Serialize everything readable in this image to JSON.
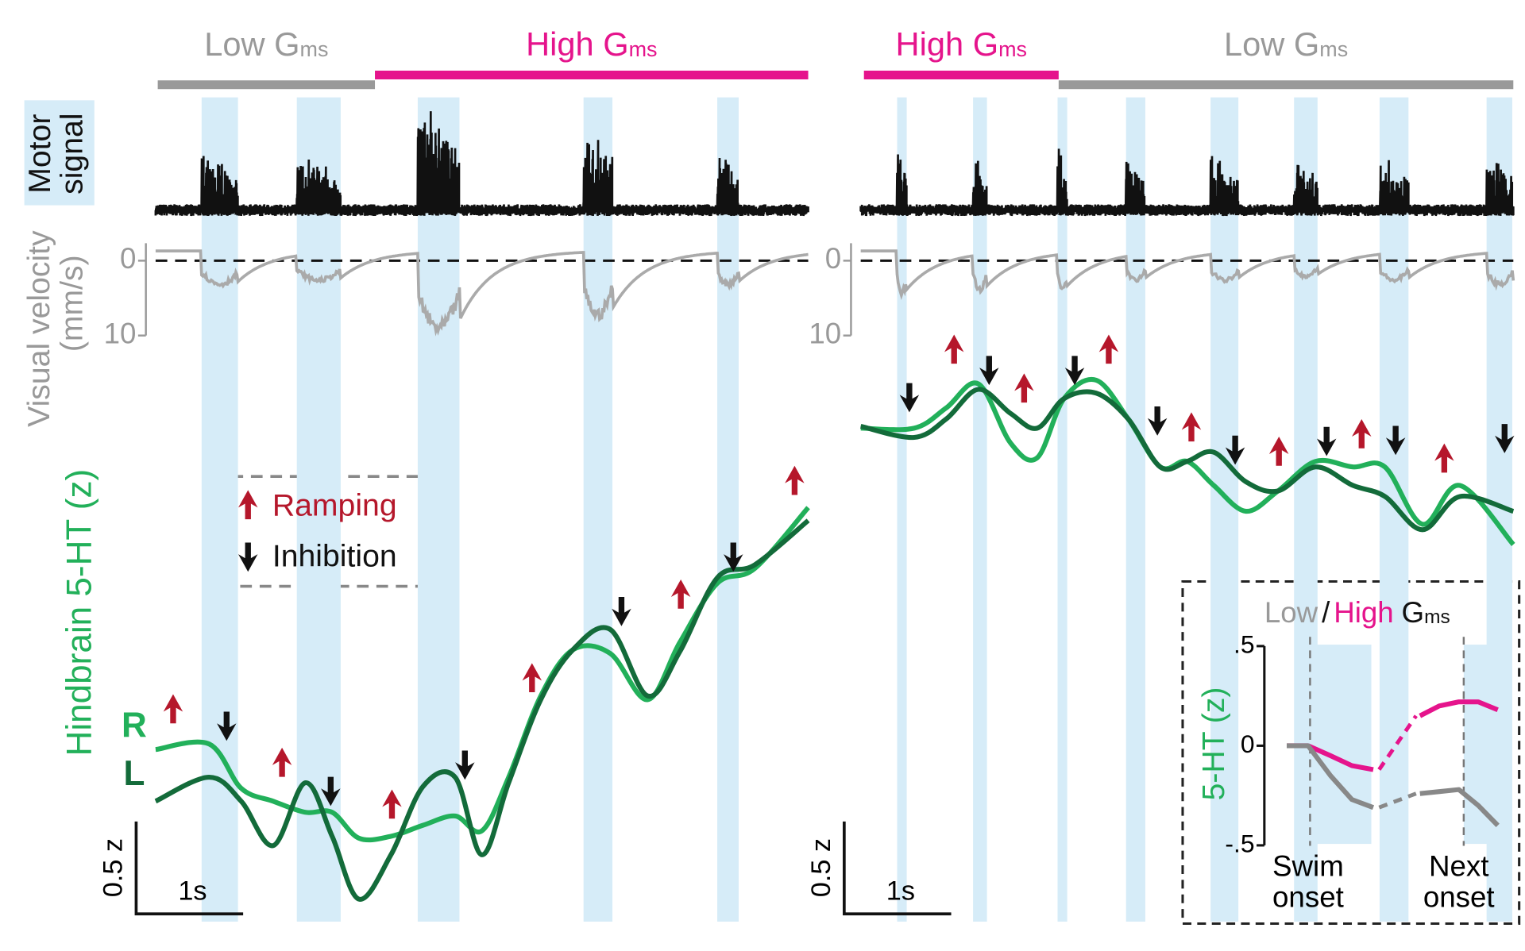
{
  "time_s": [
    0,
    0.5,
    0.8,
    1.1,
    1.4,
    1.65,
    1.9,
    2.2,
    2.5,
    2.8,
    3.05,
    3.3,
    3.6,
    3.9,
    4.25,
    4.6,
    4.9,
    5.25,
    5.6,
    6.1
  ],
  "panels": [
    {
      "conditions": [
        {
          "label": "Low G",
          "sub": "ms",
          "color": "#999999",
          "span": [
            0.02,
            2.05
          ]
        },
        {
          "label": "High G",
          "sub": "ms",
          "color": "#e5148c",
          "span": [
            2.05,
            6.1
          ]
        }
      ],
      "bouts": [
        [
          0.43,
          0.77
        ],
        [
          1.32,
          1.73
        ],
        [
          2.45,
          2.84
        ],
        [
          4.0,
          4.27
        ],
        [
          5.25,
          5.45
        ]
      ],
      "velocity_peaks": [
        3.5,
        2.9,
        10,
        8,
        3.5
      ],
      "velocity_ticks": [
        0,
        10
      ],
      "series": [
        {
          "name": "R",
          "color": "#22b05a",
          "values": [
            0.89,
            0.92,
            0.68,
            0.61,
            0.55,
            0.55,
            0.41,
            0.42,
            0.48,
            0.53,
            0.45,
            0.74,
            1.18,
            1.43,
            1.41,
            1.16,
            1.47,
            1.79,
            1.87,
            2.2
          ]
        },
        {
          "name": "L",
          "color": "#136b3a",
          "values": [
            0.61,
            0.74,
            0.61,
            0.37,
            0.71,
            0.42,
            0.08,
            0.32,
            0.69,
            0.74,
            0.32,
            0.71,
            1.16,
            1.43,
            1.54,
            1.18,
            1.42,
            1.82,
            1.89,
            2.13
          ]
        }
      ],
      "scale_z": "0.5 z",
      "scale_t": "1s"
    },
    {
      "conditions": [
        {
          "label": "High G",
          "sub": "ms",
          "color": "#e5148c",
          "span": [
            0.03,
            1.85
          ]
        },
        {
          "label": "Low G",
          "sub": "ms",
          "color": "#999999",
          "span": [
            1.85,
            6.1
          ]
        }
      ],
      "bouts": [
        [
          0.34,
          0.43
        ],
        [
          1.05,
          1.18
        ],
        [
          1.84,
          1.93
        ],
        [
          2.48,
          2.66
        ],
        [
          3.27,
          3.53
        ],
        [
          4.05,
          4.27
        ],
        [
          4.85,
          5.12
        ],
        [
          5.85,
          6.09
        ]
      ],
      "velocity_peaks": [
        4.8,
        4.2,
        4.2,
        2.9,
        2.9,
        2.3,
        2.9,
        3.5
      ],
      "velocity_ticks": [
        0,
        10
      ],
      "series": [
        {
          "color": "#22b05a",
          "values": [
            2.63,
            2.63,
            2.74,
            2.87,
            2.55,
            2.47,
            2.79,
            2.89,
            2.68,
            2.42,
            2.45,
            2.32,
            2.18,
            2.29,
            2.45,
            2.42,
            2.42,
            2.11,
            2.32,
            2.0
          ]
        },
        {
          "color": "#136b3a",
          "values": [
            2.64,
            2.58,
            2.68,
            2.84,
            2.71,
            2.63,
            2.79,
            2.82,
            2.68,
            2.42,
            2.45,
            2.5,
            2.34,
            2.29,
            2.42,
            2.32,
            2.26,
            2.08,
            2.26,
            2.18
          ]
        }
      ],
      "scale_z": "0.5 z",
      "scale_t": "1s"
    }
  ],
  "labels": {
    "motor": [
      "Motor",
      "signal"
    ],
    "velocity": [
      "Visual velocity",
      "(mm/s)"
    ],
    "serotonin": "Hindbrain 5-HT (z)"
  },
  "legend": {
    "ramping": "Ramping",
    "inhibition": "Inhibition"
  },
  "inset": {
    "title": {
      "low": "Low",
      "slash": "/",
      "high": "High",
      "g": "G",
      "sub": "ms"
    },
    "ylabel": "5-HT (z)",
    "ylim": [
      -0.5,
      0.5
    ],
    "yticks": [
      {
        "value": 0.5,
        "label": ".5"
      },
      0,
      {
        "value": -0.5,
        "label": "-.5"
      }
    ],
    "xlabels": [
      [
        "Swim",
        "onset"
      ],
      [
        "Next",
        "onset"
      ]
    ],
    "series": [
      {
        "name": "High",
        "color": "#e5148c",
        "swim": [
          0.0,
          0.0,
          -0.05,
          -0.1,
          -0.12
        ],
        "next": [
          0.15,
          0.2,
          0.22,
          0.22,
          0.18
        ]
      },
      {
        "name": "Low",
        "color": "#888888",
        "swim": [
          0.0,
          0.0,
          -0.15,
          -0.27,
          -0.31
        ],
        "next": [
          -0.24,
          -0.23,
          -0.22,
          -0.3,
          -0.4
        ]
      }
    ]
  }
}
